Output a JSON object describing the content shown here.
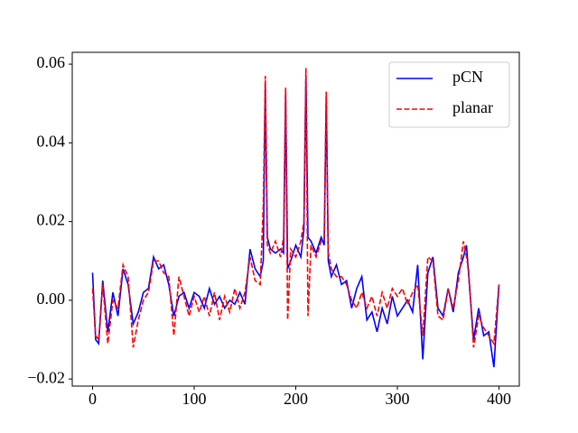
{
  "chart_data": {
    "type": "line",
    "x": [
      0,
      3,
      6,
      10,
      15,
      20,
      25,
      30,
      35,
      40,
      45,
      50,
      55,
      60,
      65,
      70,
      75,
      80,
      85,
      90,
      95,
      100,
      105,
      110,
      115,
      120,
      125,
      130,
      135,
      140,
      145,
      150,
      155,
      160,
      165,
      168,
      170,
      172,
      175,
      180,
      185,
      188,
      190,
      192,
      195,
      200,
      205,
      208,
      210,
      212,
      215,
      220,
      225,
      228,
      230,
      232,
      235,
      240,
      245,
      250,
      255,
      260,
      265,
      270,
      275,
      280,
      285,
      290,
      295,
      300,
      305,
      310,
      315,
      320,
      325,
      330,
      335,
      340,
      345,
      350,
      355,
      360,
      365,
      368,
      370,
      375,
      380,
      385,
      390,
      395,
      400
    ],
    "series": [
      {
        "name": "pCN",
        "color": "#0000ff",
        "linestyle": "solid",
        "values": [
          0.007,
          -0.01,
          -0.011,
          0.005,
          -0.008,
          0.002,
          -0.004,
          0.008,
          0.004,
          -0.006,
          -0.003,
          0.002,
          0.003,
          0.011,
          0.008,
          0.009,
          0.004,
          -0.004,
          0.001,
          0.002,
          -0.002,
          0.002,
          0.001,
          -0.002,
          0.003,
          -0.001,
          0.001,
          -0.002,
          0.0,
          -0.001,
          0.002,
          -0.001,
          0.013,
          0.008,
          0.006,
          0.01,
          0.055,
          0.016,
          0.013,
          0.012,
          0.013,
          0.012,
          0.053,
          0.008,
          0.01,
          0.014,
          0.011,
          0.018,
          0.057,
          0.016,
          0.015,
          0.012,
          0.016,
          0.014,
          0.052,
          0.01,
          0.006,
          0.009,
          0.004,
          0.005,
          -0.002,
          0.003,
          0.006,
          -0.005,
          -0.003,
          -0.008,
          -0.002,
          -0.006,
          0.001,
          -0.004,
          -0.002,
          0.0,
          -0.003,
          0.009,
          -0.015,
          0.007,
          0.011,
          -0.002,
          -0.004,
          0.003,
          -0.003,
          0.007,
          0.011,
          0.014,
          0.007,
          -0.01,
          -0.002,
          -0.009,
          -0.008,
          -0.017,
          0.004
        ]
      },
      {
        "name": "planar",
        "color": "#ff0000",
        "linestyle": "dashed",
        "values": [
          0.003,
          -0.009,
          -0.01,
          0.004,
          -0.011,
          0.0,
          -0.002,
          0.009,
          0.006,
          -0.012,
          -0.005,
          0.0,
          0.002,
          0.01,
          0.01,
          0.007,
          0.006,
          -0.009,
          0.006,
          0.001,
          -0.004,
          0.001,
          -0.003,
          0.001,
          -0.004,
          0.002,
          -0.005,
          0.001,
          -0.003,
          0.003,
          -0.002,
          0.002,
          0.011,
          0.005,
          0.004,
          0.024,
          0.057,
          0.014,
          0.012,
          0.015,
          0.011,
          0.016,
          0.054,
          -0.005,
          0.013,
          0.011,
          0.015,
          0.02,
          0.059,
          -0.004,
          0.014,
          0.011,
          0.015,
          0.016,
          0.053,
          0.012,
          0.008,
          0.006,
          0.006,
          0.004,
          0.0,
          -0.002,
          0.002,
          -0.002,
          0.001,
          -0.004,
          0.002,
          -0.002,
          0.003,
          0.001,
          0.003,
          -0.001,
          0.002,
          0.004,
          -0.009,
          0.011,
          0.01,
          -0.004,
          -0.005,
          0.003,
          -0.002,
          0.005,
          0.015,
          0.011,
          0.008,
          -0.012,
          -0.004,
          -0.007,
          -0.009,
          -0.011,
          0.004
        ]
      }
    ],
    "xlim": [
      -20,
      420
    ],
    "ylim": [
      -0.0218,
      0.063
    ],
    "xticks": [
      0,
      100,
      200,
      300,
      400
    ],
    "yticks": [
      {
        "value": -0.02,
        "label": "−0.02"
      },
      {
        "value": 0,
        "label": "0.00"
      },
      {
        "value": 0.02,
        "label": "0.02"
      },
      {
        "value": 0.04,
        "label": "0.04"
      },
      {
        "value": 0.06,
        "label": "0.06"
      }
    ],
    "grid": false,
    "legend": "upper right"
  }
}
